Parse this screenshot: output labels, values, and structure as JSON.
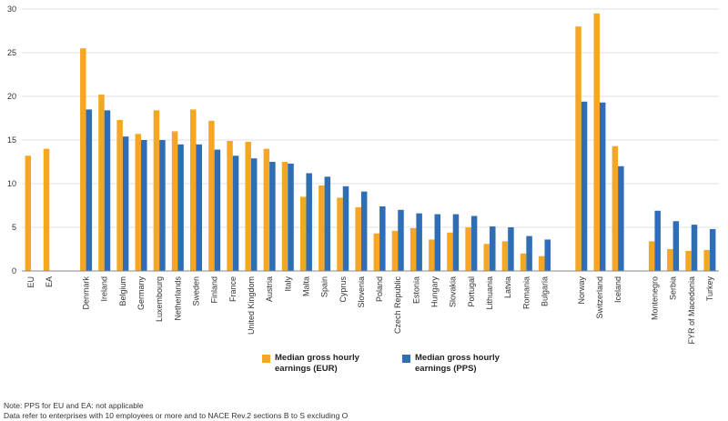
{
  "chart_data": {
    "type": "bar",
    "categories": [
      "EU",
      "EA",
      "",
      "Denmark",
      "Ireland",
      "Belgium",
      "Germany",
      "Luxembourg",
      "Netherlands",
      "Sweden",
      "Finland",
      "France",
      "United Kingdom",
      "Austria",
      "Italy",
      "Malta",
      "Spain",
      "Cyprus",
      "Slovenia",
      "Poland",
      "Czech Republic",
      "Estonia",
      "Hungary",
      "Slovakia",
      "Portugal",
      "Lithuania",
      "Latvia",
      "Romania",
      "Bulgaria",
      "",
      "Norway",
      "Switzerland",
      "Iceland",
      "",
      "Montenegro",
      "Serbia",
      "FYR of Macedonia",
      "Turkey"
    ],
    "series": [
      {
        "name": "Median gross hourly earnings (EUR)",
        "color": "#f5a623",
        "values": [
          13.2,
          14.0,
          null,
          25.5,
          20.2,
          17.3,
          15.7,
          18.4,
          16.0,
          18.5,
          17.2,
          14.9,
          14.8,
          14.0,
          12.5,
          8.5,
          9.8,
          8.4,
          7.3,
          4.3,
          4.6,
          4.9,
          3.6,
          4.4,
          5.0,
          3.1,
          3.4,
          2.0,
          1.7,
          null,
          28.0,
          29.5,
          14.3,
          null,
          3.4,
          2.5,
          2.3,
          2.4
        ]
      },
      {
        "name": "Median gross hourly earnings (PPS)",
        "color": "#2f6db5",
        "values": [
          null,
          null,
          null,
          18.5,
          18.4,
          15.4,
          15.0,
          15.0,
          14.5,
          14.5,
          13.9,
          13.2,
          12.9,
          12.5,
          12.3,
          11.2,
          10.8,
          9.7,
          9.1,
          7.4,
          7.0,
          6.6,
          6.5,
          6.5,
          6.3,
          5.1,
          5.0,
          4.0,
          3.6,
          null,
          19.4,
          19.3,
          12.0,
          null,
          6.9,
          5.7,
          5.3,
          4.8
        ]
      }
    ],
    "ylim": [
      0,
      30
    ],
    "yticks": [
      "0",
      "5",
      "10",
      "15",
      "20",
      "25",
      "30"
    ],
    "legend_position": "bottom"
  },
  "legend": {
    "eur_label": "Median gross hourly earnings (EUR)",
    "pps_label": "Median gross hourly earnings (PPS)"
  },
  "notes": {
    "line1": "Note: PPS for EU and EA: not applicable",
    "line2": "Data refer to enterprises with 10 employees or more and to NACE Rev.2 sections B to S excluding O"
  }
}
